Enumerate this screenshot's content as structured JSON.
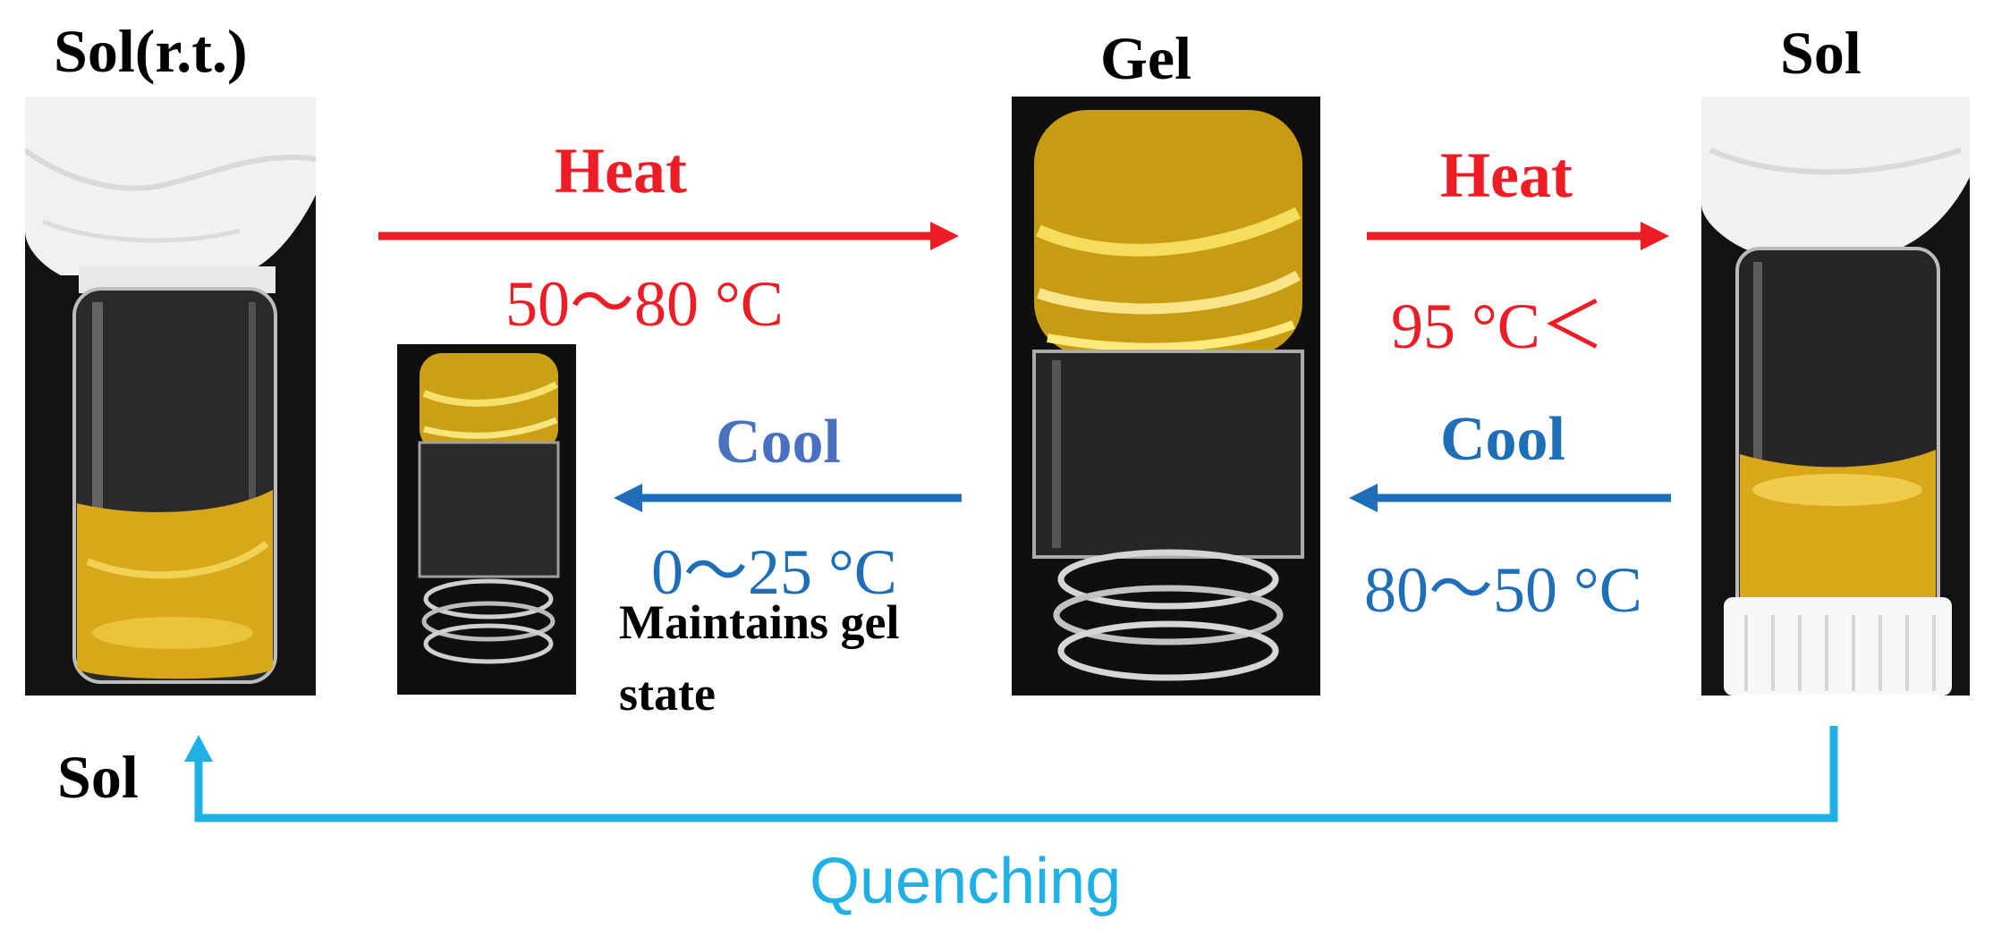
{
  "colors": {
    "heat": "#ee1c24",
    "cool_left": "#4a70c0",
    "cool_right": "#1e6fb8",
    "quench": "#1fb0e6",
    "photo_bg": "#0d0d0d",
    "liquid": "#e8b81e",
    "glove": "#f2f2f2"
  },
  "states": {
    "sol_rt": "Sol(r.t.)",
    "gel": "Gel",
    "sol_right": "Sol",
    "sol_bottom_left": "Sol"
  },
  "heat_step_1": {
    "label": "Heat",
    "temp": "50～80 °C"
  },
  "heat_step_2": {
    "label": "Heat",
    "temp": "95 °C＜"
  },
  "cool_step_1": {
    "label": "Cool",
    "temp": "0～25 °C",
    "note_line1": "Maintains gel",
    "note_line2": "state"
  },
  "cool_step_2": {
    "label": "Cool",
    "temp": "80～50 °C"
  },
  "quench": {
    "label": "Quenching"
  },
  "photos": [
    {
      "name": "sol-rt-vial-photo",
      "depicts": "upright vial with yellow liquid at bottom, glove at top"
    },
    {
      "name": "gel-small-vial-photo",
      "depicts": "inverted vial holding yellow gel"
    },
    {
      "name": "gel-vial-photo",
      "depicts": "inverted vial holding yellow gel"
    },
    {
      "name": "sol-hot-vial-photo",
      "depicts": "upright vial with yellow liquid, white cap, glove at top"
    }
  ]
}
